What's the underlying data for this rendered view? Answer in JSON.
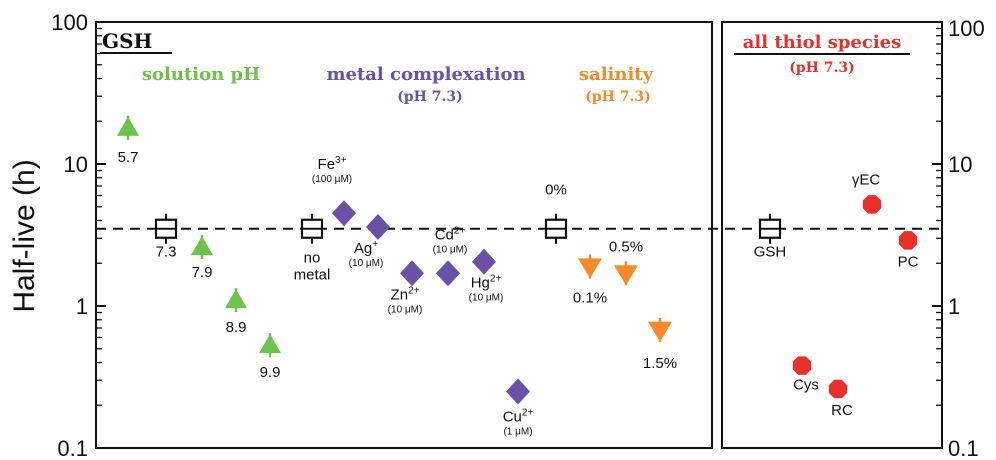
{
  "chart_data": {
    "type": "scatter",
    "ylabel": "Half-live (h)",
    "yscale": "log",
    "ylim": [
      0.1,
      100
    ],
    "y_ticks": [
      "0.1",
      "1",
      "10",
      "100"
    ],
    "reference_line": {
      "value": 3.5,
      "style": "dashed"
    },
    "colors": {
      "green": "#6cc24a",
      "purple": "#6a50a7",
      "orange": "#f58a2b",
      "red": "#e8302a",
      "black": "#111111"
    },
    "left_panel": {
      "label": "GSH",
      "groups": [
        {
          "title": "solution pH",
          "subtitle": "",
          "color": "#6cc24a"
        },
        {
          "title": "metal complexation",
          "subtitle": "(pH 7.3)",
          "color": "#6a50a7"
        },
        {
          "title": "salinity",
          "subtitle": "(pH 7.3)",
          "color": "#f58a2b"
        }
      ],
      "points": [
        {
          "group": "solution pH",
          "marker": "square",
          "x": 1,
          "y": 3.5,
          "label": "7.3",
          "label_sub": ""
        },
        {
          "group": "solution pH",
          "marker": "triangle-up",
          "x": 0,
          "y": 18,
          "label": "5.7",
          "label_sub": ""
        },
        {
          "group": "solution pH",
          "marker": "triangle-up",
          "x": 2,
          "y": 2.6,
          "label": "7.9",
          "label_sub": ""
        },
        {
          "group": "solution pH",
          "marker": "triangle-up",
          "x": 3,
          "y": 1.1,
          "label": "8.9",
          "label_sub": ""
        },
        {
          "group": "solution pH",
          "marker": "triangle-up",
          "x": 4,
          "y": 0.53,
          "label": "9.9",
          "label_sub": ""
        },
        {
          "group": "metal complexation",
          "marker": "square",
          "x": 5,
          "y": 3.5,
          "label": "no metal",
          "label_sub": ""
        },
        {
          "group": "metal complexation",
          "marker": "diamond",
          "x": 6,
          "y": 4.5,
          "label": "Fe3+",
          "label_sub": "(100 μM)"
        },
        {
          "group": "metal complexation",
          "marker": "diamond",
          "x": 7,
          "y": 3.6,
          "label": "Ag+",
          "label_sub": "(10 μM)"
        },
        {
          "group": "metal complexation",
          "marker": "diamond",
          "x": 8,
          "y": 1.7,
          "label": "Zn2+",
          "label_sub": "(10 μM)"
        },
        {
          "group": "metal complexation",
          "marker": "diamond",
          "x": 9,
          "y": 1.7,
          "label": "Cd2+",
          "label_sub": "(10 μM)"
        },
        {
          "group": "metal complexation",
          "marker": "diamond",
          "x": 10,
          "y": 2.05,
          "label": "Hg2+",
          "label_sub": "(10 μM)"
        },
        {
          "group": "metal complexation",
          "marker": "diamond",
          "x": 11,
          "y": 0.25,
          "label": "Cu2+",
          "label_sub": "(1 μM)"
        },
        {
          "group": "salinity",
          "marker": "square",
          "x": 12,
          "y": 3.5,
          "label": "0%",
          "label_sub": ""
        },
        {
          "group": "salinity",
          "marker": "triangle-down",
          "x": 13,
          "y": 1.9,
          "label": "0.1%",
          "label_sub": ""
        },
        {
          "group": "salinity",
          "marker": "triangle-down",
          "x": 14,
          "y": 1.7,
          "label": "0.5%",
          "label_sub": ""
        },
        {
          "group": "salinity",
          "marker": "triangle-down",
          "x": 15,
          "y": 0.68,
          "label": "1.5%",
          "label_sub": ""
        }
      ]
    },
    "right_panel": {
      "title": "all thiol species",
      "subtitle": "(pH 7.3)",
      "points": [
        {
          "marker": "square",
          "x": 0,
          "y": 3.5,
          "label": "GSH"
        },
        {
          "marker": "octagon",
          "x": 1,
          "y": 0.38,
          "label": "Cys"
        },
        {
          "marker": "octagon",
          "x": 2,
          "y": 0.26,
          "label": "RC"
        },
        {
          "marker": "octagon",
          "x": 3,
          "y": 5.2,
          "label": "γEC"
        },
        {
          "marker": "octagon",
          "x": 4,
          "y": 2.9,
          "label": "PC"
        }
      ]
    }
  }
}
